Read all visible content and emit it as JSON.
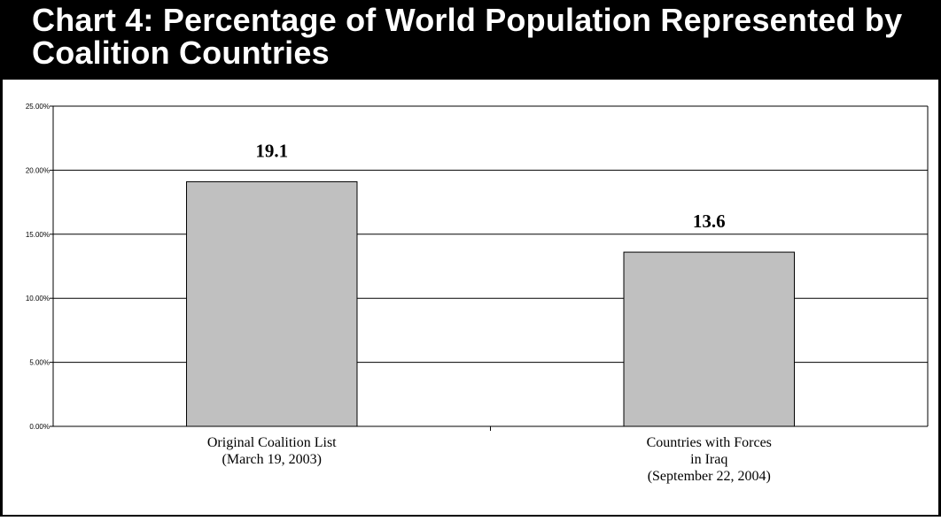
{
  "title": "Chart 4: Percentage of World Population Represented by Coalition Countries",
  "colors": {
    "bar_fill": "#c0c0c0",
    "bar_stroke": "#000000",
    "title_bg": "#000000",
    "title_text": "#ffffff"
  },
  "chart_data": {
    "type": "bar",
    "title": "Chart 4: Percentage of World Population Represented by Coalition Countries",
    "categories": [
      [
        "Original Coalition List",
        "(March 19, 2003)"
      ],
      [
        "Countries with Forces",
        "in Iraq",
        "(September 22, 2004)"
      ]
    ],
    "values": [
      19.1,
      13.6
    ],
    "data_labels": [
      "19.1",
      "13.6"
    ],
    "yticks": [
      "0.00%",
      "5.00%",
      "10.00%",
      "15.00%",
      "20.00%",
      "25.00%"
    ],
    "ylim": [
      0,
      25
    ],
    "grid": true,
    "legend": "none"
  }
}
